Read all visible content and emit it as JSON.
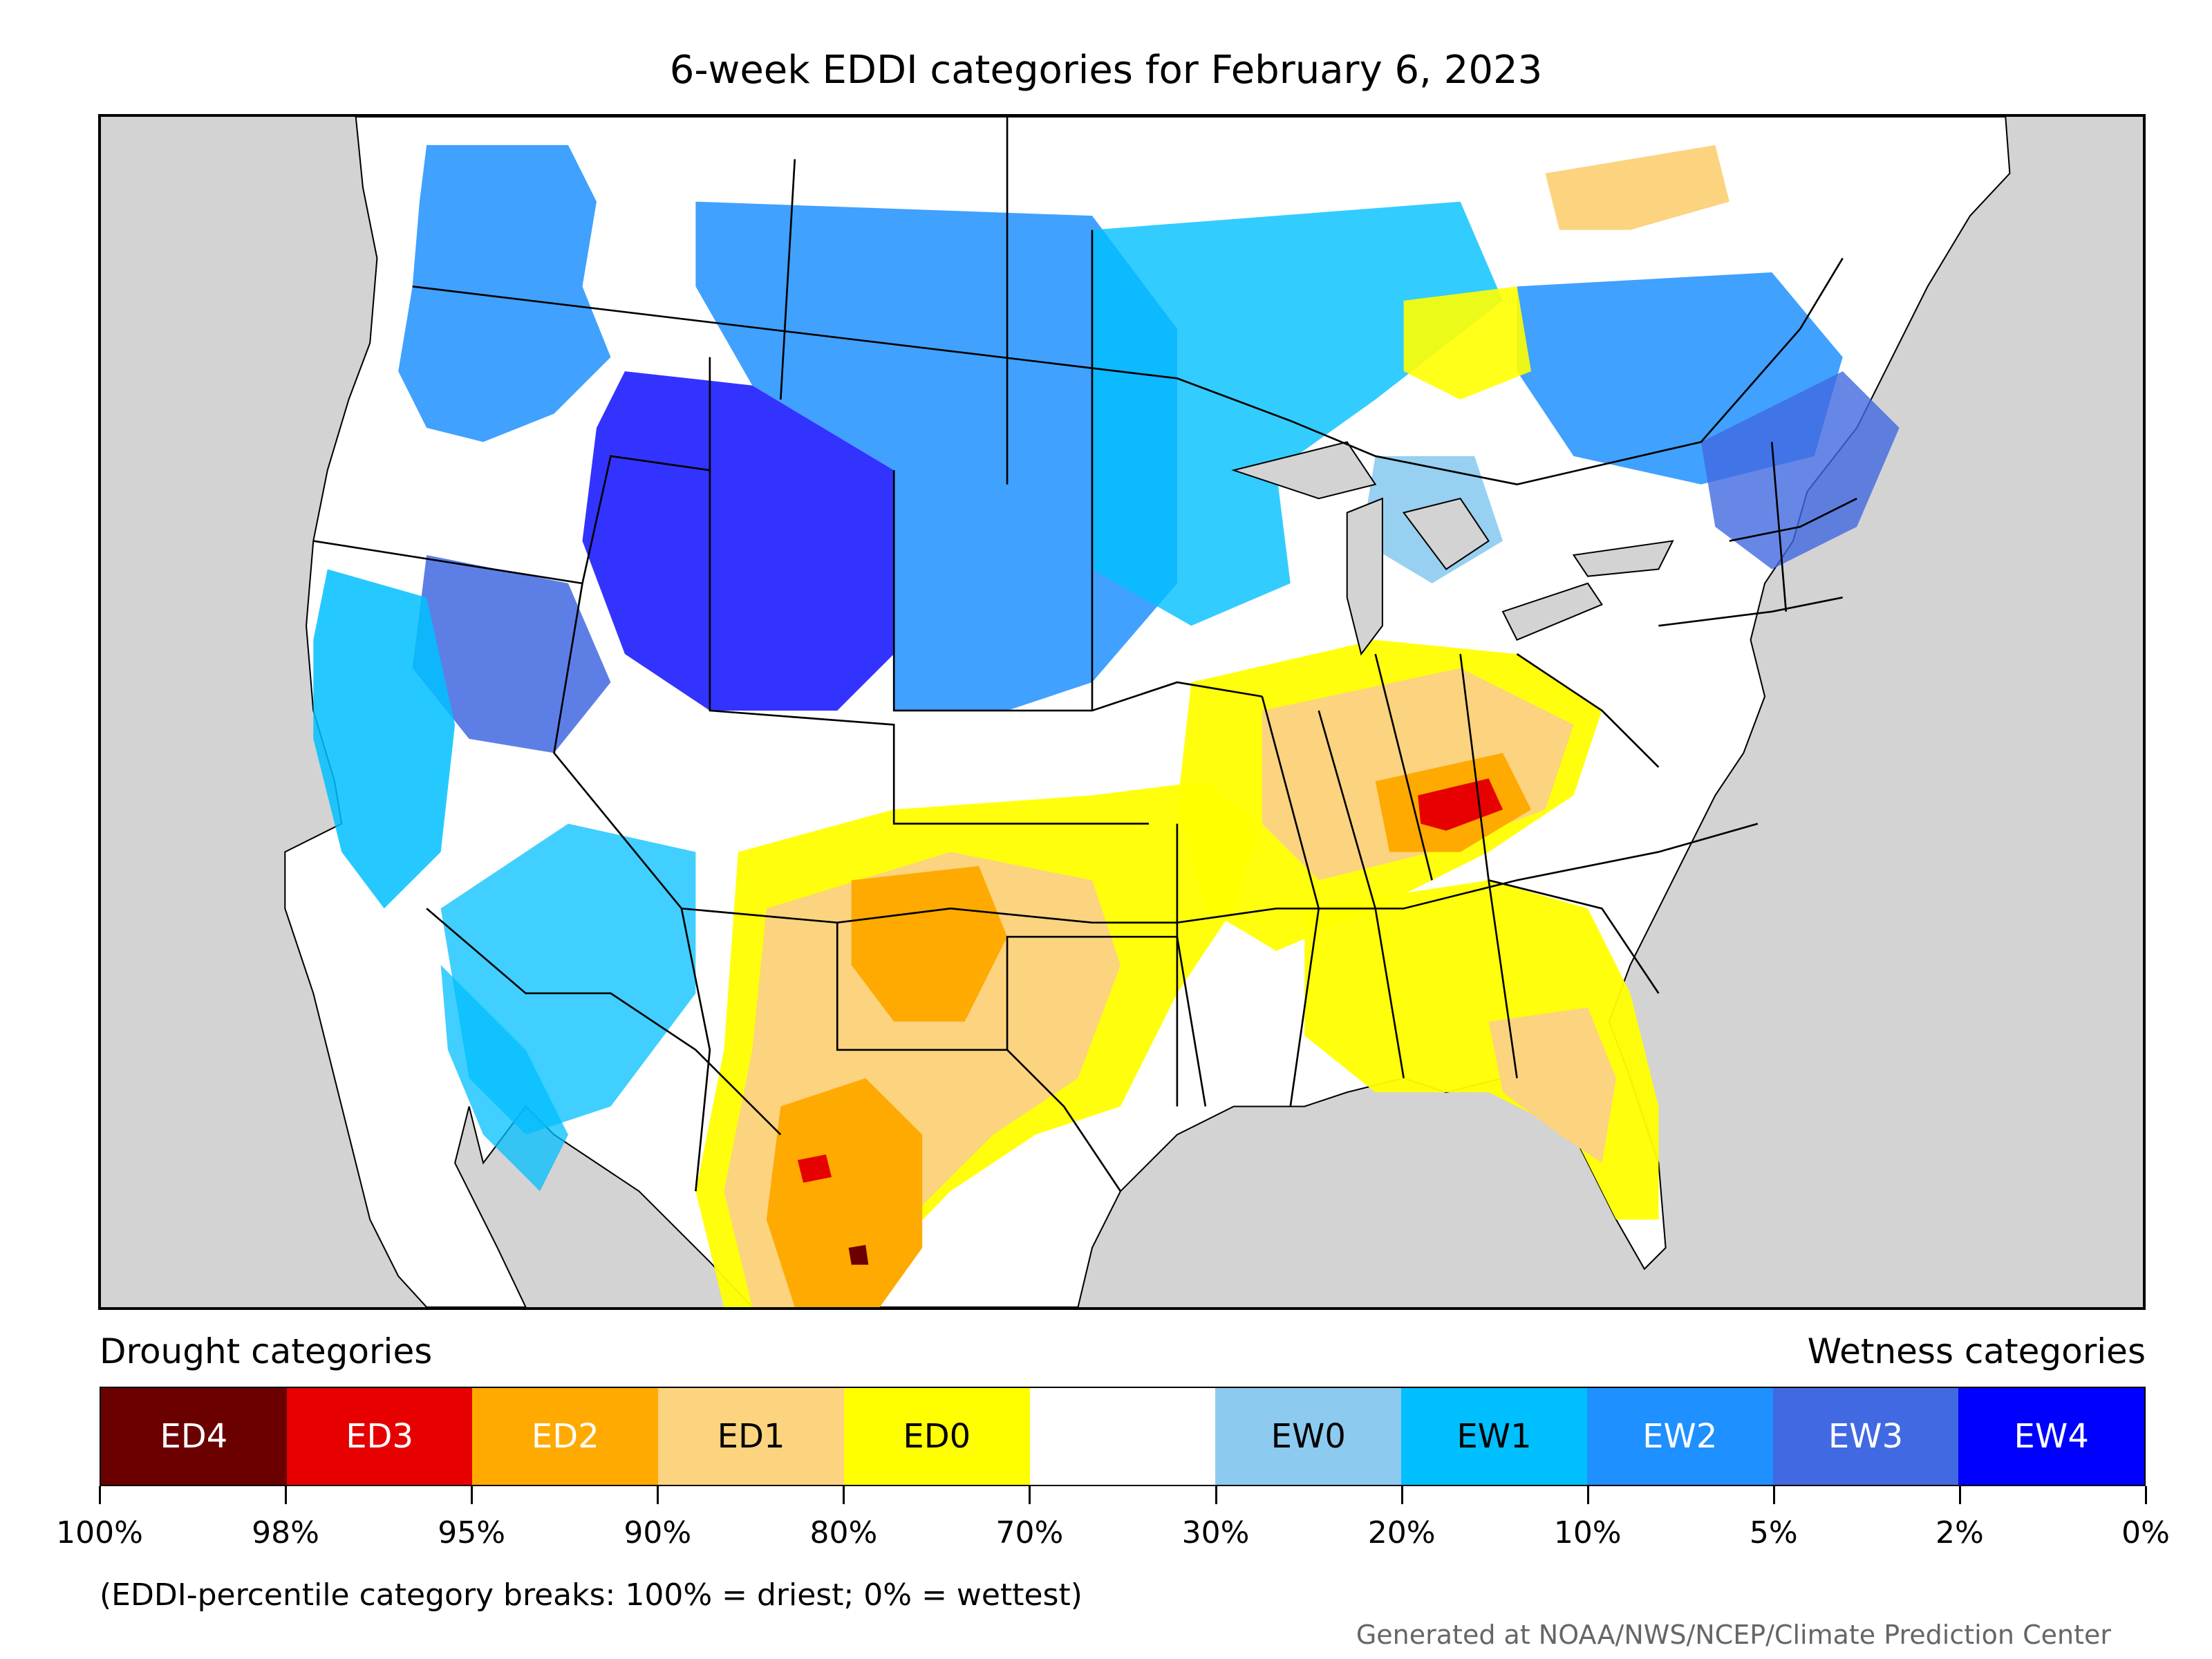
{
  "title": "6-week EDDI categories for February 6, 2023",
  "map": {
    "background_color": "#d3d3d3",
    "land_color": "#ffffff",
    "boundary_color": "#000000",
    "regions": [
      {
        "name": "northwest-wet",
        "category": "EW2"
      },
      {
        "name": "northern-rockies-wet",
        "category": "EW4"
      },
      {
        "name": "great-basin-wet",
        "category": "EW3"
      },
      {
        "name": "california-coast-wet",
        "category": "EW1"
      },
      {
        "name": "southwest-wet",
        "category": "EW1"
      },
      {
        "name": "northern-plains-wet",
        "category": "EW2"
      },
      {
        "name": "upper-midwest-wet",
        "category": "EW1"
      },
      {
        "name": "canada-east-wet",
        "category": "EW2"
      },
      {
        "name": "northeast-wet",
        "category": "EW3"
      },
      {
        "name": "southern-plains-dry",
        "category": "ED0"
      },
      {
        "name": "new-mexico-texas-dry",
        "category": "ED1"
      },
      {
        "name": "texas-panhandle-dry",
        "category": "ED2"
      },
      {
        "name": "mexico-north-dry",
        "category": "ED2"
      },
      {
        "name": "ohio-valley-dry",
        "category": "ED0"
      },
      {
        "name": "kentucky-dry",
        "category": "ED1"
      },
      {
        "name": "tennessee-dry",
        "category": "ED2"
      },
      {
        "name": "tennessee-core-dry",
        "category": "ED3"
      },
      {
        "name": "southeast-dry",
        "category": "ED0"
      },
      {
        "name": "florida-dry",
        "category": "ED1"
      },
      {
        "name": "ontario-dry",
        "category": "ED0"
      },
      {
        "name": "quebec-dry",
        "category": "ED1"
      }
    ]
  },
  "legend": {
    "drought_heading": "Drought categories",
    "wetness_heading": "Wetness categories",
    "categories": [
      {
        "label": "ED4",
        "color": "#6b0000",
        "text_color": "#ffffff"
      },
      {
        "label": "ED3",
        "color": "#e60000",
        "text_color": "#ffffff"
      },
      {
        "label": "ED2",
        "color": "#ffaa00",
        "text_color": "#ffffff"
      },
      {
        "label": "ED1",
        "color": "#fcd37f",
        "text_color": "#000000"
      },
      {
        "label": "ED0",
        "color": "#ffff00",
        "text_color": "#000000"
      },
      {
        "label": "",
        "color": "#ffffff",
        "text_color": "#000000"
      },
      {
        "label": "EW0",
        "color": "#8ccbef",
        "text_color": "#000000"
      },
      {
        "label": "EW1",
        "color": "#00bfff",
        "text_color": "#000000"
      },
      {
        "label": "EW2",
        "color": "#1e90ff",
        "text_color": "#ffffff"
      },
      {
        "label": "EW3",
        "color": "#4169e1",
        "text_color": "#ffffff"
      },
      {
        "label": "EW4",
        "color": "#0000ff",
        "text_color": "#ffffff"
      }
    ],
    "tick_labels": [
      "100%",
      "98%",
      "95%",
      "90%",
      "80%",
      "70%",
      "30%",
      "20%",
      "10%",
      "5%",
      "2%",
      "0%"
    ]
  },
  "note": "(EDDI-percentile category breaks: 100% = driest; 0% = wettest)",
  "credit": "Generated at NOAA/NWS/NCEP/Climate Prediction Center"
}
